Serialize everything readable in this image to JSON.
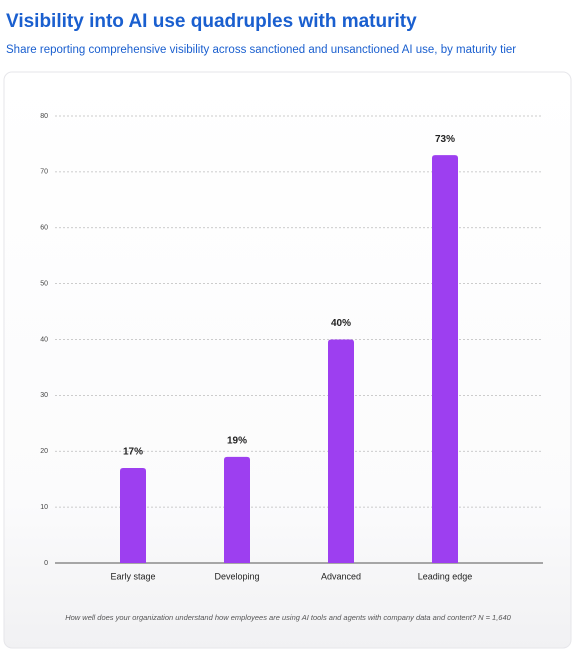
{
  "chart_data": {
    "type": "bar",
    "title": "Visibility into AI use quadruples with maturity",
    "subtitle": "Share reporting comprehensive visibility across sanctioned and unsanctioned AI use, by maturity tier",
    "categories": [
      "Early stage",
      "Developing",
      "Advanced",
      "Leading edge"
    ],
    "values": [
      17,
      19,
      40,
      73
    ],
    "value_labels": [
      "17%",
      "19%",
      "40%",
      "73%"
    ],
    "color": "#9d3ff0",
    "ylim": [
      0,
      80
    ],
    "yticks": [
      0,
      10,
      20,
      30,
      40,
      50,
      60,
      70,
      80
    ],
    "grid": true,
    "footnote": "How well does your organization understand how employees are using AI tools and agents with company data and content? N = 1,640"
  }
}
